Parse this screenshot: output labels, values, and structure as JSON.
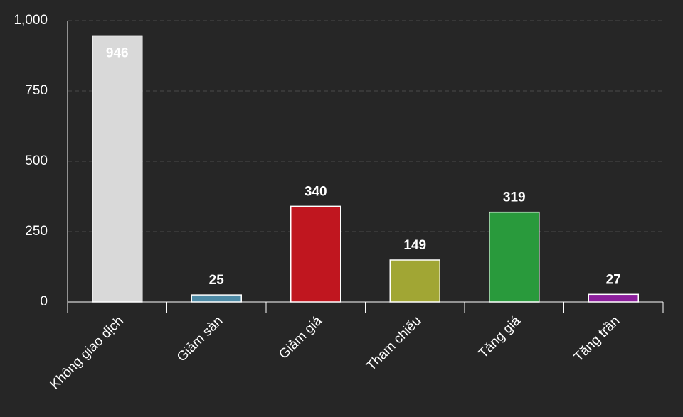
{
  "chart_data": {
    "type": "bar",
    "categories": [
      "Không giao dịch",
      "Giảm sàn",
      "Giảm giá",
      "Tham chiếu",
      "Tăng giá",
      "Tăng trần"
    ],
    "values": [
      946,
      25,
      340,
      149,
      319,
      27
    ],
    "colors": [
      "#d9d9d9",
      "#4e8ba6",
      "#c0161f",
      "#a1a634",
      "#299a3c",
      "#8c1f9c"
    ],
    "ylim": [
      0,
      1000
    ],
    "yticks": [
      0,
      250,
      500,
      750,
      {
        "value": 1000,
        "label": "1,000"
      }
    ],
    "grid": true
  }
}
